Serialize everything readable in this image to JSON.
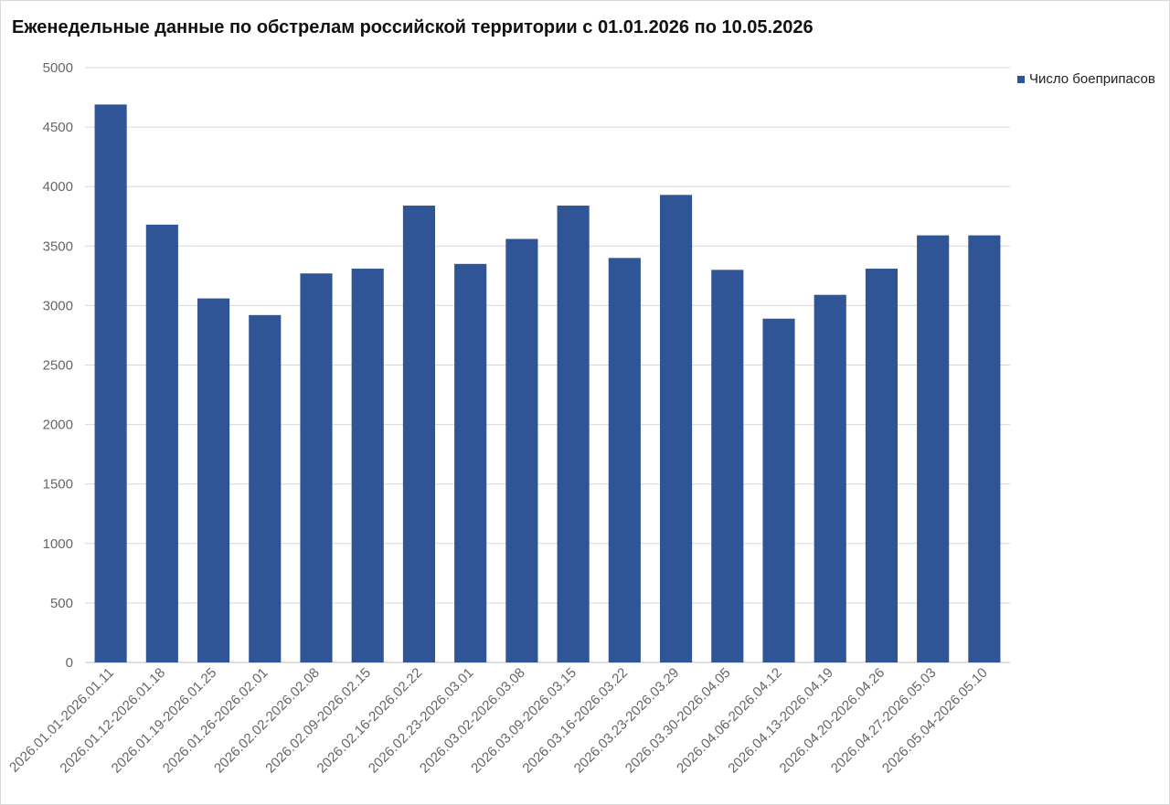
{
  "chart_data": {
    "type": "bar",
    "title": "Еженедельные данные по обстрелам российской территории с 01.01.2026 по 10.05.2026",
    "xlabel": "",
    "ylabel": "",
    "ylim": [
      0,
      5000
    ],
    "yticks": [
      0,
      500,
      1000,
      1500,
      2000,
      2500,
      3000,
      3500,
      4000,
      4500,
      5000
    ],
    "grid": true,
    "legend_position": "right",
    "bar_color": "#2f5597",
    "categories": [
      "2026.01.01-2026.01.11",
      "2026.01.12-2026.01.18",
      "2026.01.19-2026.01.25",
      "2026.01.26-2026.02.01",
      "2026.02.02-2026.02.08",
      "2026.02.09-2026.02.15",
      "2026.02.16-2026.02.22",
      "2026.02.23-2026.03.01",
      "2026.03.02-2026.03.08",
      "2026.03.09-2026.03.15",
      "2026.03.16-2026.03.22",
      "2026.03.23-2026.03.29",
      "2026.03.30-2026.04.05",
      "2026.04.06-2026.04.12",
      "2026.04.13-2026.04.19",
      "2026.04.20-2026.04.26",
      "2026.04.27-2026.05.03",
      "2026.05.04-2026.05.10"
    ],
    "series": [
      {
        "name": "Число боеприпасов",
        "values": [
          4690,
          3680,
          3060,
          2920,
          3270,
          3310,
          3840,
          3350,
          3560,
          3840,
          3400,
          3930,
          3300,
          2890,
          3090,
          3310,
          3590,
          3590
        ]
      }
    ]
  }
}
